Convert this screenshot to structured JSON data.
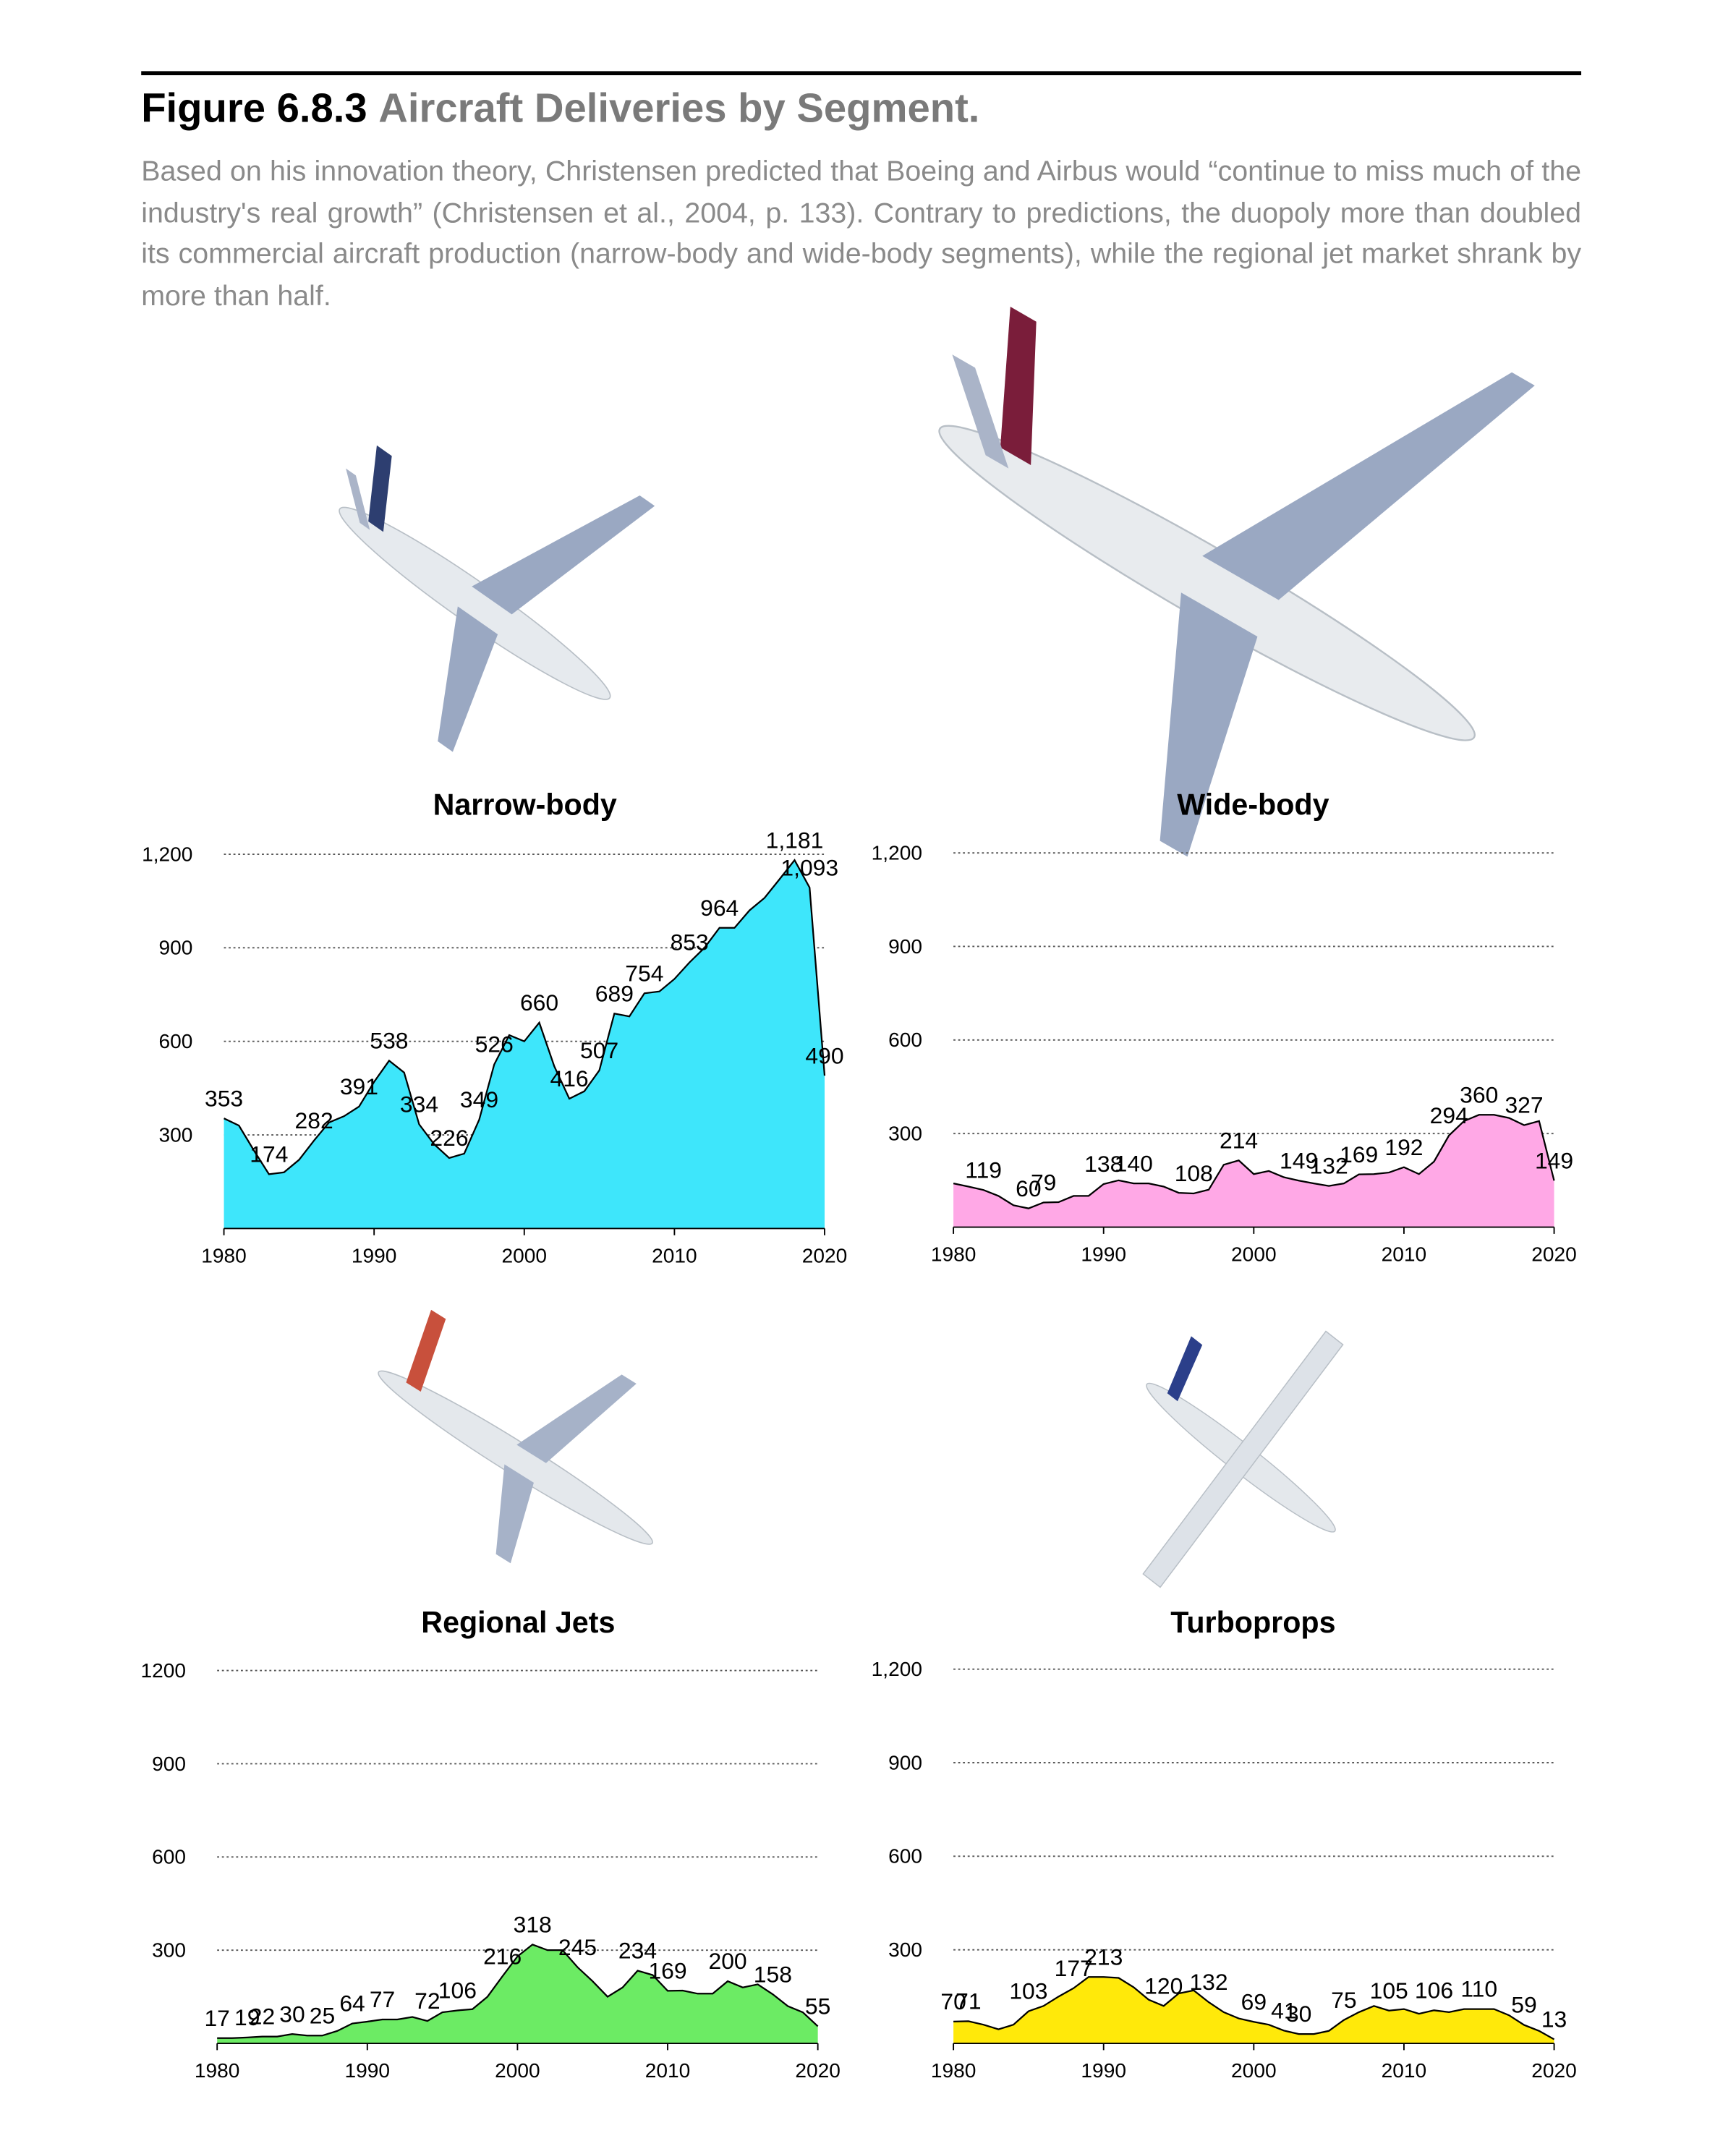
{
  "figure": {
    "number": "Figure 6.8.3",
    "title": "Aircraft Deliveries by Segment.",
    "caption": "Based on his innovation theory, Christensen predicted that Boeing and Airbus would “continue to miss much of the industry's real growth” (Christensen et al., 2004, p. 133). Contrary to predictions, the duopoly more than doubled its commercial aircraft production (narrow-body and wide-body segments), while the regional jet market shrank by more than half."
  },
  "chart_data": [
    {
      "type": "area",
      "title": "Narrow-body",
      "color": "#3ee6fb",
      "x": [
        1980,
        1981,
        1982,
        1983,
        1984,
        1985,
        1986,
        1987,
        1988,
        1989,
        1990,
        1991,
        1992,
        1993,
        1994,
        1995,
        1996,
        1997,
        1998,
        1999,
        2000,
        2001,
        2002,
        2003,
        2004,
        2005,
        2006,
        2007,
        2008,
        2009,
        2010,
        2011,
        2012,
        2013,
        2014,
        2015,
        2016,
        2017,
        2018,
        2019,
        2020
      ],
      "values": [
        353,
        330,
        250,
        174,
        180,
        220,
        282,
        340,
        360,
        391,
        470,
        538,
        500,
        334,
        270,
        226,
        240,
        349,
        526,
        620,
        600,
        660,
        520,
        416,
        440,
        507,
        689,
        680,
        754,
        760,
        800,
        853,
        900,
        964,
        964,
        1020,
        1060,
        1120,
        1181,
        1093,
        490
      ],
      "value_labels": [
        "353",
        null,
        null,
        "174",
        null,
        null,
        "282",
        null,
        null,
        "391",
        null,
        "538",
        null,
        "334",
        null,
        "226",
        null,
        "349",
        "526",
        null,
        null,
        "660",
        null,
        "416",
        null,
        "507",
        "689",
        null,
        "754",
        null,
        null,
        "853",
        null,
        "964",
        null,
        null,
        null,
        null,
        "1,181",
        "1,093",
        "490"
      ],
      "xlim": [
        1980,
        2020
      ],
      "xticks": [
        1980,
        1990,
        2000,
        2010,
        2020
      ],
      "ylim": [
        0,
        1200
      ],
      "yticks": [
        300,
        600,
        900,
        {
          "value": 1200,
          "label": "1,200"
        }
      ],
      "grid": true
    },
    {
      "type": "area",
      "title": "Wide-body",
      "color": "#ffa8e6",
      "x": [
        1980,
        1981,
        1982,
        1983,
        1984,
        1985,
        1986,
        1987,
        1988,
        1989,
        1990,
        1991,
        1992,
        1993,
        1994,
        1995,
        1996,
        1997,
        1998,
        1999,
        2000,
        2001,
        2002,
        2003,
        2004,
        2005,
        2006,
        2007,
        2008,
        2009,
        2010,
        2011,
        2012,
        2013,
        2014,
        2015,
        2016,
        2017,
        2018,
        2019,
        2020
      ],
      "values": [
        140,
        130,
        119,
        100,
        70,
        60,
        79,
        80,
        100,
        100,
        138,
        150,
        140,
        140,
        130,
        110,
        108,
        120,
        200,
        214,
        170,
        180,
        160,
        149,
        140,
        132,
        140,
        169,
        170,
        175,
        192,
        170,
        210,
        294,
        340,
        360,
        360,
        350,
        327,
        340,
        149
      ],
      "value_labels": [
        null,
        null,
        "119",
        null,
        null,
        "60",
        "79",
        null,
        null,
        null,
        "138",
        null,
        "140",
        null,
        null,
        null,
        "108",
        null,
        null,
        "214",
        null,
        null,
        null,
        "149",
        null,
        "132",
        null,
        "169",
        null,
        null,
        "192",
        null,
        null,
        "294",
        null,
        "360",
        null,
        null,
        "327",
        null,
        "149"
      ],
      "xlim": [
        1980,
        2020
      ],
      "xticks": [
        1980,
        1990,
        2000,
        2010,
        2020
      ],
      "ylim": [
        0,
        1200
      ],
      "yticks": [
        300,
        600,
        900,
        {
          "value": 1200,
          "label": "1,200"
        }
      ],
      "grid": true
    },
    {
      "type": "area",
      "title": "Regional Jets",
      "color": "#6ceb64",
      "x": [
        1980,
        1981,
        1982,
        1983,
        1984,
        1985,
        1986,
        1987,
        1988,
        1989,
        1990,
        1991,
        1992,
        1993,
        1994,
        1995,
        1996,
        1997,
        1998,
        1999,
        2000,
        2001,
        2002,
        2003,
        2004,
        2005,
        2006,
        2007,
        2008,
        2009,
        2010,
        2011,
        2012,
        2013,
        2014,
        2015,
        2016,
        2017,
        2018,
        2019,
        2020
      ],
      "values": [
        17,
        17,
        19,
        22,
        22,
        30,
        25,
        25,
        40,
        64,
        70,
        77,
        77,
        85,
        72,
        100,
        106,
        110,
        150,
        216,
        280,
        318,
        300,
        300,
        245,
        200,
        150,
        180,
        234,
        220,
        169,
        170,
        160,
        160,
        200,
        180,
        190,
        158,
        120,
        100,
        55
      ],
      "value_labels": [
        "17",
        null,
        "19",
        "22",
        null,
        "30",
        null,
        "25",
        null,
        "64",
        null,
        "77",
        null,
        null,
        "72",
        null,
        "106",
        null,
        null,
        "216",
        null,
        "318",
        null,
        null,
        "245",
        null,
        null,
        null,
        "234",
        null,
        "169",
        null,
        null,
        null,
        "200",
        null,
        null,
        "158",
        null,
        null,
        "55"
      ],
      "xlim": [
        1980,
        2020
      ],
      "xticks": [
        1980,
        1990,
        2000,
        2010,
        2020
      ],
      "ylim": [
        0,
        1200
      ],
      "yticks": [
        300,
        600,
        900,
        1200
      ],
      "grid": true
    },
    {
      "type": "area",
      "title": "Turboprops",
      "color": "#ffe90a",
      "x": [
        1980,
        1981,
        1982,
        1983,
        1984,
        1985,
        1986,
        1987,
        1988,
        1989,
        1990,
        1991,
        1992,
        1993,
        1994,
        1995,
        1996,
        1997,
        1998,
        1999,
        2000,
        2001,
        2002,
        2003,
        2004,
        2005,
        2006,
        2007,
        2008,
        2009,
        2010,
        2011,
        2012,
        2013,
        2014,
        2015,
        2016,
        2017,
        2018,
        2019,
        2020
      ],
      "values": [
        70,
        71,
        60,
        45,
        60,
        103,
        120,
        150,
        177,
        213,
        213,
        210,
        180,
        140,
        120,
        160,
        170,
        132,
        100,
        80,
        69,
        60,
        41,
        30,
        30,
        40,
        75,
        100,
        120,
        105,
        110,
        95,
        106,
        100,
        110,
        110,
        110,
        90,
        59,
        40,
        13
      ],
      "value_labels": [
        "70",
        "71",
        null,
        null,
        null,
        "103",
        null,
        null,
        "177",
        null,
        "213",
        null,
        null,
        null,
        "120",
        null,
        null,
        "132",
        null,
        null,
        "69",
        null,
        "41",
        "30",
        null,
        null,
        "75",
        null,
        null,
        "105",
        null,
        null,
        "106",
        null,
        null,
        "110",
        null,
        null,
        "59",
        null,
        "13"
      ],
      "xlim": [
        1980,
        2020
      ],
      "xticks": [
        1980,
        1990,
        2000,
        2010,
        2020
      ],
      "ylim": [
        0,
        1200
      ],
      "yticks": [
        300,
        600,
        900,
        {
          "value": 1200,
          "label": "1,200"
        }
      ],
      "grid": true
    }
  ]
}
